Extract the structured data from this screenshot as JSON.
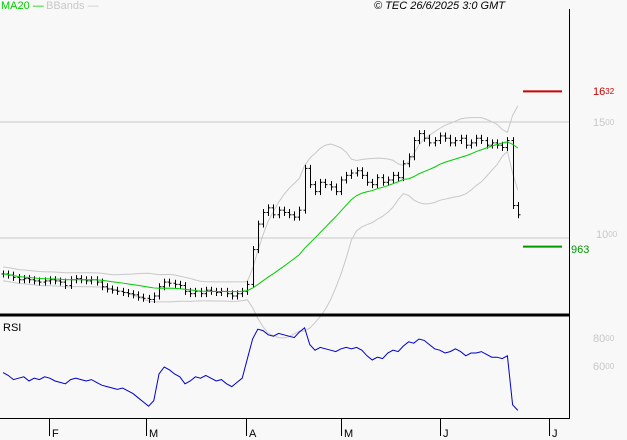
{
  "legend": {
    "ma_label": "MA20",
    "ma_color": "#00cc00",
    "bb_label": "BBands",
    "bb_color": "#c8c8c8"
  },
  "copyright": "© TEC 26/6/2025 3:0 GMT",
  "chart_data": [
    {
      "type": "ohlc-bar",
      "indicators": [
        "MA20",
        "BBands"
      ],
      "price_axis_labels": [
        "15.00",
        "10.00"
      ],
      "resistance": {
        "value": "16.32",
        "color": "#cc0000"
      },
      "support": {
        "value": "9.63",
        "color": "#009900"
      },
      "ylim": [
        6.6,
        19.6
      ],
      "grid": "horizontal at labels",
      "x_month_labels": [
        "F",
        "M",
        "A",
        "M",
        "J",
        "J"
      ],
      "close": [
        8.45,
        8.4,
        8.3,
        8.2,
        8.25,
        8.2,
        8.15,
        8.1,
        8.15,
        8.2,
        8.15,
        8.1,
        7.95,
        8.2,
        8.25,
        8.2,
        8.15,
        8.2,
        8.1,
        7.9,
        7.8,
        7.75,
        7.7,
        7.65,
        7.6,
        7.55,
        7.45,
        7.4,
        7.35,
        7.5,
        7.9,
        8.1,
        8.05,
        8.0,
        7.95,
        7.7,
        7.6,
        7.7,
        7.6,
        7.75,
        7.7,
        7.65,
        7.7,
        7.6,
        7.5,
        7.6,
        7.7,
        8.0,
        9.5,
        10.6,
        11.1,
        11.3,
        11.0,
        11.2,
        11.1,
        11.0,
        10.9,
        11.2,
        13.0,
        12.3,
        12.0,
        12.4,
        12.3,
        12.2,
        12.0,
        12.5,
        12.7,
        12.8,
        12.9,
        12.7,
        12.4,
        12.3,
        12.6,
        12.4,
        12.5,
        12.7,
        12.6,
        13.2,
        13.5,
        14.2,
        14.5,
        14.3,
        14.1,
        14.2,
        14.4,
        14.3,
        14.1,
        14.2,
        14.3,
        14.0,
        14.1,
        14.3,
        14.2,
        14.0,
        14.1,
        14.0,
        13.9,
        14.2,
        11.4,
        11.0
      ]
    },
    {
      "type": "line",
      "title": "RSI",
      "color": "#0000cc",
      "axis_labels": [
        "80.00",
        "60.00"
      ],
      "values": [
        56,
        54,
        51,
        52,
        53,
        50,
        52,
        51,
        53,
        52,
        50,
        49,
        48,
        51,
        52,
        51,
        50,
        51,
        49,
        47,
        46,
        45,
        44,
        45,
        43,
        41,
        38,
        35,
        32,
        36,
        55,
        60,
        58,
        55,
        53,
        48,
        50,
        53,
        52,
        54,
        52,
        50,
        51,
        48,
        46,
        49,
        52,
        66,
        80,
        87,
        86,
        83,
        82,
        84,
        83,
        82,
        81,
        85,
        88,
        76,
        72,
        74,
        73,
        72,
        71,
        73,
        74,
        73,
        74,
        72,
        68,
        65,
        67,
        66,
        70,
        72,
        71,
        75,
        78,
        77,
        80,
        79,
        76,
        73,
        72,
        70,
        71,
        73,
        71,
        68,
        70,
        70,
        71,
        69,
        67,
        67,
        66,
        68,
        33,
        29
      ]
    }
  ]
}
